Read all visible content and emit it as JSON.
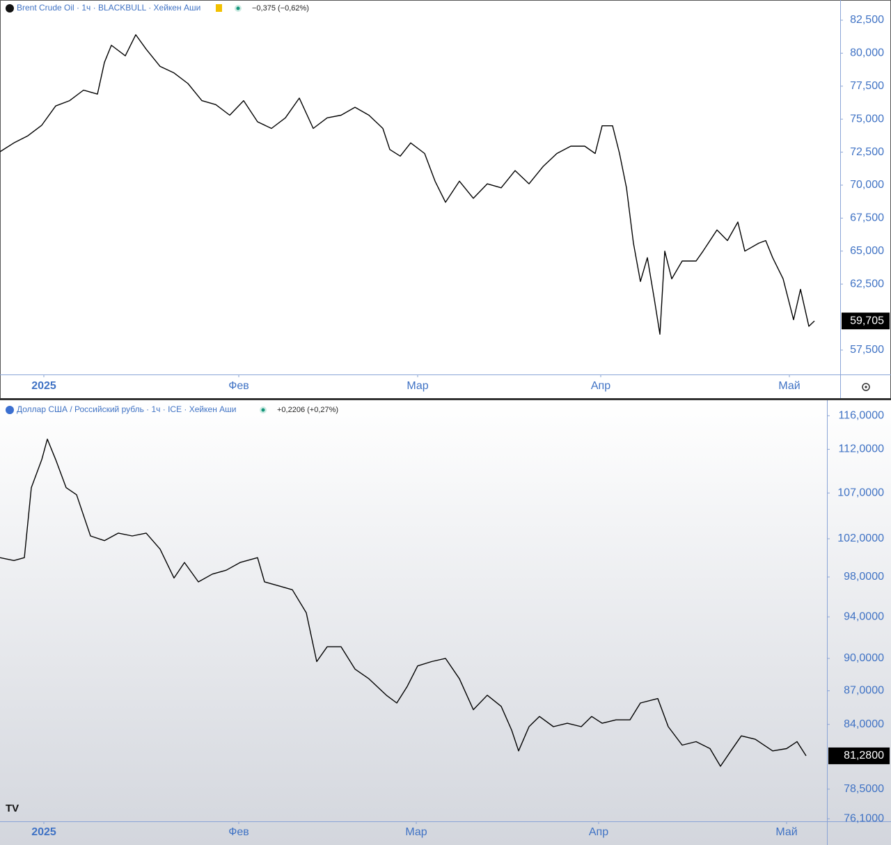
{
  "chart_data": [
    {
      "type": "line",
      "title": "Brent Crude Oil · 1ч · BLACKBULL · Хейкен Аши",
      "change": "−0,375 (−0,62%)",
      "last_value": {
        "value": 59.705,
        "label": "59,705"
      },
      "color": "#000000",
      "log_scale": false,
      "grid": false,
      "x": [
        0,
        20,
        40,
        60,
        80,
        100,
        120,
        140,
        150,
        160,
        180,
        195,
        210,
        230,
        250,
        270,
        290,
        310,
        330,
        350,
        370,
        390,
        410,
        430,
        450,
        470,
        490,
        510,
        530,
        550,
        560,
        575,
        590,
        610,
        625,
        640,
        660,
        680,
        700,
        720,
        740,
        760,
        780,
        800,
        820,
        840,
        855,
        865,
        880,
        890,
        900,
        910,
        920,
        930,
        940,
        948,
        955,
        965,
        980,
        1000,
        1010,
        1030,
        1045,
        1060,
        1070,
        1090,
        1100,
        1110,
        1125,
        1140,
        1150,
        1162,
        1170
      ],
      "values": [
        72.53,
        73.2,
        73.74,
        74.54,
        76.0,
        76.4,
        77.2,
        76.9,
        79.3,
        80.6,
        79.8,
        81.4,
        80.3,
        79.0,
        78.5,
        77.7,
        76.4,
        76.1,
        75.3,
        76.4,
        74.8,
        74.3,
        75.1,
        76.6,
        74.3,
        75.1,
        75.3,
        75.9,
        75.3,
        74.3,
        72.7,
        72.2,
        73.2,
        72.4,
        70.3,
        68.7,
        70.3,
        69.0,
        70.1,
        69.8,
        71.1,
        70.1,
        71.4,
        72.4,
        72.95,
        72.95,
        72.4,
        74.5,
        74.5,
        72.4,
        69.8,
        65.6,
        62.7,
        64.5,
        61.35,
        58.7,
        65.0,
        62.9,
        64.25,
        64.25,
        65.0,
        66.6,
        65.8,
        67.2,
        65.0,
        65.6,
        65.8,
        64.5,
        62.9,
        59.8,
        62.1,
        59.3,
        59.705
      ],
      "xlim": [
        0,
        1207
      ],
      "xticks": [
        {
          "value": 63,
          "label": "2025"
        },
        {
          "value": 343,
          "label": "Фев"
        },
        {
          "value": 600,
          "label": "Мар"
        },
        {
          "value": 863,
          "label": "Апр"
        },
        {
          "value": 1134,
          "label": "Май"
        }
      ],
      "ylim": [
        55.65,
        84.03
      ],
      "yticks": [
        {
          "value": 82.5,
          "label": "82,500"
        },
        {
          "value": 80,
          "label": "80,000"
        },
        {
          "value": 77.5,
          "label": "77,500"
        },
        {
          "value": 75,
          "label": "75,000"
        },
        {
          "value": 72.5,
          "label": "72,500"
        },
        {
          "value": 70,
          "label": "70,000"
        },
        {
          "value": 67.5,
          "label": "67,500"
        },
        {
          "value": 65,
          "label": "65,000"
        },
        {
          "value": 62.5,
          "label": "62,500"
        },
        {
          "value": 57.5,
          "label": "57,500"
        }
      ]
    },
    {
      "type": "line",
      "title": "Доллар США / Российский рубль · 1ч · ICE · Хейкен Аши",
      "change": "+0,2206 (+0,27%)",
      "last_value": {
        "value": 81.28,
        "label": "81,2800"
      },
      "color": "#000000",
      "log_scale": true,
      "grid": false,
      "x": [
        0,
        20,
        35,
        45,
        60,
        68,
        80,
        95,
        110,
        130,
        150,
        170,
        190,
        210,
        230,
        250,
        265,
        285,
        305,
        325,
        345,
        370,
        380,
        400,
        420,
        440,
        455,
        470,
        490,
        510,
        530,
        555,
        570,
        585,
        600,
        620,
        640,
        660,
        680,
        700,
        720,
        735,
        745,
        760,
        775,
        795,
        815,
        835,
        850,
        865,
        885,
        905,
        920,
        945,
        960,
        980,
        1000,
        1020,
        1035,
        1050,
        1065,
        1085,
        1110,
        1130,
        1145,
        1158
      ],
      "values": [
        100.0,
        99.7,
        100.0,
        107.6,
        110.8,
        113.2,
        110.8,
        107.6,
        106.8,
        102.3,
        101.8,
        102.6,
        102.3,
        102.6,
        100.9,
        97.9,
        99.5,
        97.5,
        98.3,
        98.7,
        99.5,
        100.0,
        97.5,
        97.1,
        96.7,
        94.4,
        89.7,
        91.1,
        91.1,
        89.0,
        88.1,
        86.6,
        85.9,
        87.4,
        89.3,
        89.7,
        90.0,
        88.1,
        85.3,
        86.6,
        85.6,
        83.5,
        81.7,
        83.8,
        84.7,
        83.8,
        84.1,
        83.8,
        84.7,
        84.1,
        84.4,
        84.4,
        85.9,
        86.3,
        83.8,
        82.2,
        82.5,
        81.9,
        80.4,
        81.7,
        83.0,
        82.7,
        81.7,
        81.9,
        82.5,
        81.28
      ],
      "xlim": [
        0,
        1188
      ],
      "xticks": [
        {
          "value": 63,
          "label": "2025"
        },
        {
          "value": 343,
          "label": "Фев"
        },
        {
          "value": 598,
          "label": "Мар"
        },
        {
          "value": 860,
          "label": "Апр"
        },
        {
          "value": 1130,
          "label": "Май"
        }
      ],
      "ylim": [
        75.9,
        117.9
      ],
      "yticks": [
        {
          "value": 116,
          "label": "116,0000"
        },
        {
          "value": 112,
          "label": "112,0000"
        },
        {
          "value": 107,
          "label": "107,0000"
        },
        {
          "value": 102,
          "label": "102,0000"
        },
        {
          "value": 98,
          "label": "98,0000"
        },
        {
          "value": 94,
          "label": "94,0000"
        },
        {
          "value": 90,
          "label": "90,0000"
        },
        {
          "value": 87,
          "label": "87,0000"
        },
        {
          "value": 84,
          "label": "84,0000"
        },
        {
          "value": 78.5,
          "label": "78,5000"
        },
        {
          "value": 76.1,
          "label": "76,1000"
        }
      ]
    }
  ]
}
